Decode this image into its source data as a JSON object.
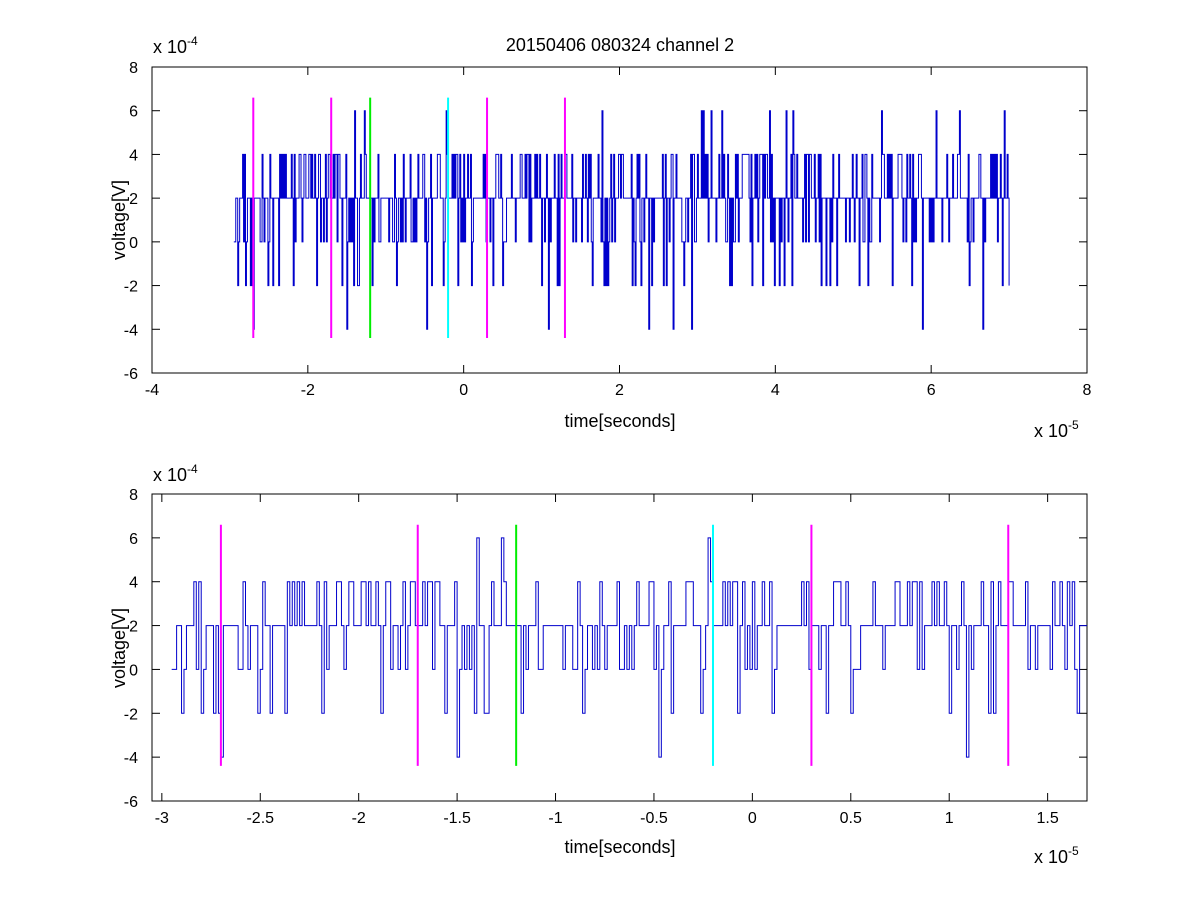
{
  "chart_data": [
    {
      "type": "line",
      "title": "20150406 080324 channel 2",
      "xlabel": "time[seconds]",
      "ylabel": "voltage[V]",
      "x_exponent": "x 10",
      "x_exponent_power": "-5",
      "y_exponent": "x 10",
      "y_exponent_power": "-4",
      "xlim": [
        -4,
        8
      ],
      "ylim": [
        -6,
        8
      ],
      "xticks": [
        -4,
        -2,
        0,
        2,
        4,
        6,
        8
      ],
      "yticks": [
        -6,
        -4,
        -2,
        0,
        2,
        4,
        6,
        8
      ],
      "grid": false,
      "series": [
        {
          "color": "#0000cc",
          "x_range": [
            -2.95,
            7.0
          ],
          "sample_step": 0.0125,
          "value_levels": [
            -4,
            -2,
            0,
            2,
            4,
            6
          ],
          "typical_range": [
            0,
            4
          ]
        }
      ],
      "markers": [
        {
          "x": -2.7,
          "y_range": [
            -4.4,
            6.6
          ],
          "color": "#ff00ff"
        },
        {
          "x": -1.7,
          "y_range": [
            -4.4,
            6.6
          ],
          "color": "#ff00ff"
        },
        {
          "x": -1.2,
          "y_range": [
            -4.4,
            6.6
          ],
          "color": "#00ee00"
        },
        {
          "x": -0.2,
          "y_range": [
            -4.4,
            6.6
          ],
          "color": "#00ffff"
        },
        {
          "x": 0.3,
          "y_range": [
            -4.4,
            6.6
          ],
          "color": "#ff00ff"
        },
        {
          "x": 1.3,
          "y_range": [
            -4.4,
            6.6
          ],
          "color": "#ff00ff"
        }
      ]
    },
    {
      "type": "line",
      "title": "",
      "xlabel": "time[seconds]",
      "ylabel": "voltage[V]",
      "x_exponent": "x 10",
      "x_exponent_power": "-5",
      "y_exponent": "x 10",
      "y_exponent_power": "-4",
      "xlim": [
        -3.05,
        1.7
      ],
      "ylim": [
        -6,
        8
      ],
      "xticks": [
        -3,
        -2.5,
        -2,
        -1.5,
        -1,
        -0.5,
        0,
        0.5,
        1,
        1.5
      ],
      "xtick_labels": [
        "-3",
        "-2.5",
        "-2",
        "-1.5",
        "-1",
        "-0.5",
        "0",
        "0.5",
        "1",
        "1.5"
      ],
      "yticks": [
        -6,
        -4,
        -2,
        0,
        2,
        4,
        6,
        8
      ],
      "grid": false,
      "series": [
        {
          "color": "#0000cc",
          "x_range": [
            -2.95,
            1.7
          ],
          "sample_step": 0.0125,
          "value_levels": [
            -4,
            -2,
            0,
            2,
            4,
            6
          ],
          "typical_range": [
            0,
            4
          ]
        }
      ],
      "markers": [
        {
          "x": -2.7,
          "y_range": [
            -4.4,
            6.6
          ],
          "color": "#ff00ff"
        },
        {
          "x": -1.7,
          "y_range": [
            -4.4,
            6.6
          ],
          "color": "#ff00ff"
        },
        {
          "x": -1.2,
          "y_range": [
            -4.4,
            6.6
          ],
          "color": "#00ee00"
        },
        {
          "x": -0.2,
          "y_range": [
            -4.4,
            6.6
          ],
          "color": "#00ffff"
        },
        {
          "x": 0.3,
          "y_range": [
            -4.4,
            6.6
          ],
          "color": "#ff00ff"
        },
        {
          "x": 1.3,
          "y_range": [
            -4.4,
            6.6
          ],
          "color": "#ff00ff"
        }
      ]
    }
  ]
}
